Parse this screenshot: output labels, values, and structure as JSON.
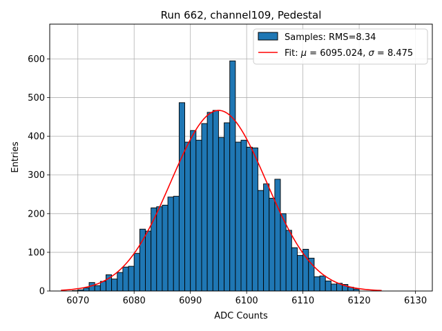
{
  "chart_data": {
    "type": "bar",
    "title": "Run 662, channel109, Pedestal",
    "xlabel": "ADC Counts",
    "ylabel": "Entries",
    "xlim": [
      6065,
      6133
    ],
    "ylim": [
      0,
      690
    ],
    "xticks": [
      6070,
      6080,
      6090,
      6100,
      6110,
      6120,
      6130
    ],
    "yticks": [
      0,
      100,
      200,
      300,
      400,
      500,
      600
    ],
    "grid": true,
    "bin_width": 1,
    "histogram": {
      "name": "Samples: RMS=8.34",
      "color": "#1f77b4",
      "edge_color": "#000000",
      "bin_starts": [
        6069,
        6070,
        6071,
        6072,
        6073,
        6074,
        6075,
        6076,
        6077,
        6078,
        6079,
        6080,
        6081,
        6082,
        6083,
        6084,
        6085,
        6086,
        6087,
        6088,
        6089,
        6090,
        6091,
        6092,
        6093,
        6094,
        6095,
        6096,
        6097,
        6098,
        6099,
        6100,
        6101,
        6102,
        6103,
        6104,
        6105,
        6106,
        6107,
        6108,
        6109,
        6110,
        6111,
        6112,
        6113,
        6114,
        6115,
        6116,
        6117,
        6118,
        6119
      ],
      "counts": [
        1,
        3,
        8,
        22,
        14,
        25,
        42,
        31,
        48,
        62,
        64,
        97,
        160,
        155,
        215,
        218,
        222,
        243,
        245,
        487,
        385,
        415,
        390,
        433,
        462,
        467,
        397,
        435,
        595,
        385,
        390,
        372,
        370,
        260,
        277,
        240,
        289,
        200,
        157,
        112,
        92,
        108,
        85,
        37,
        39,
        26,
        18,
        20,
        17,
        10,
        5
      ]
    },
    "fit": {
      "name": "Fit: μ = 6095.024, σ = 8.475",
      "mu_label": "μ",
      "mu_value": "6095.024",
      "sigma_label": "σ",
      "sigma_value": "8.475",
      "mu": 6095.024,
      "sigma": 8.475,
      "amplitude": 467,
      "x_range": [
        6067,
        6124
      ],
      "color": "#ff0000"
    },
    "legend_position": "top-right"
  }
}
